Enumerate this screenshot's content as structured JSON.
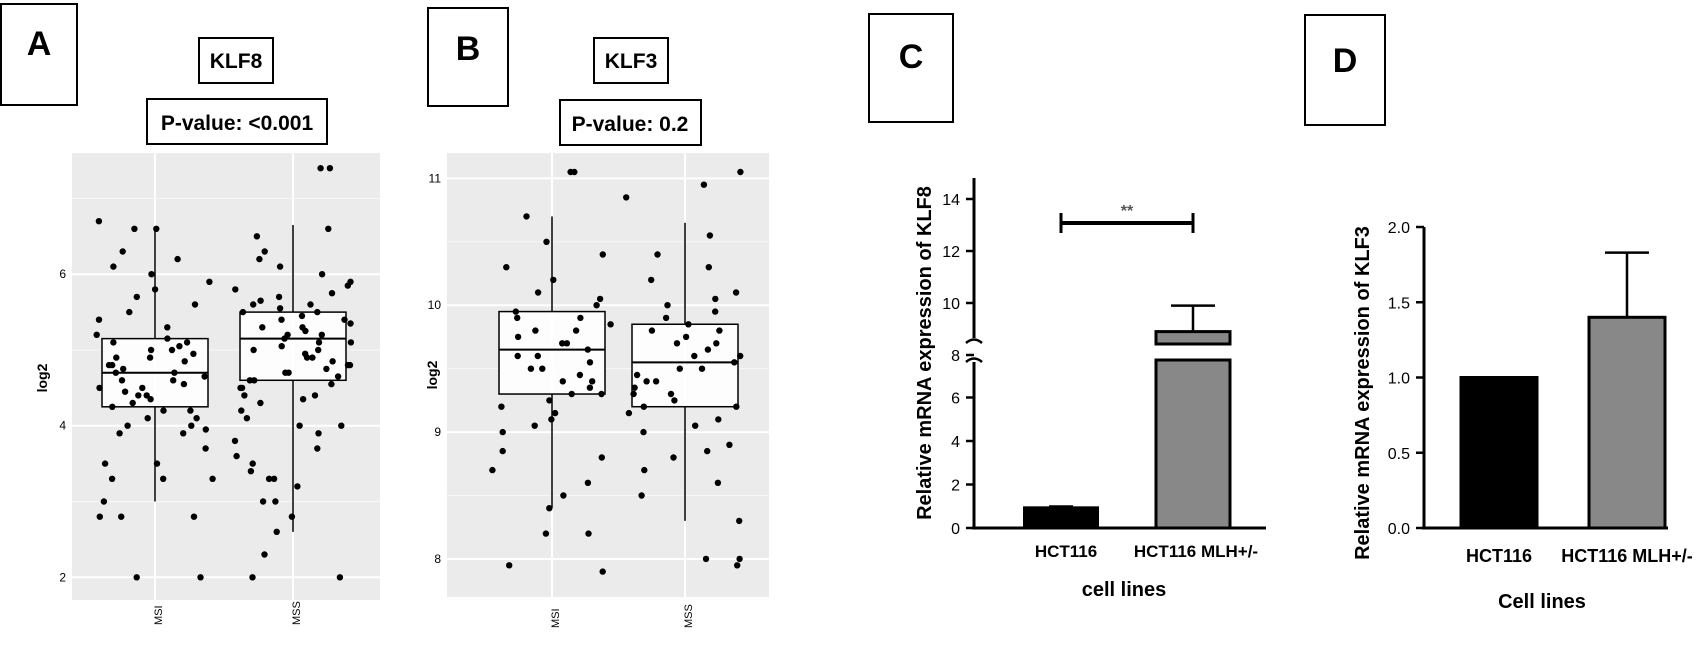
{
  "chart_data": [
    {
      "panel": "A",
      "type": "scatter",
      "subtype": "boxplot-with-jitter",
      "title": "KLF8",
      "subtitle": "P-value: <0.001",
      "xlabel": "",
      "ylabel": "log2",
      "categories": [
        "MSI",
        "MSS"
      ],
      "ylim": [
        1.7,
        7.6
      ],
      "yticks": [
        2,
        4,
        6
      ],
      "grid": true,
      "background": "#ebebeb",
      "boxes": [
        {
          "category": "MSI",
          "whisker_low": 3.0,
          "q1": 4.25,
          "median": 4.7,
          "q3": 5.15,
          "whisker_high": 6.6
        },
        {
          "category": "MSS",
          "whisker_low": 2.6,
          "q1": 4.6,
          "median": 5.15,
          "q3": 5.5,
          "whisker_high": 6.65
        }
      ],
      "points": {
        "MSI": [
          2.0,
          2.0,
          2.8,
          2.8,
          2.8,
          3.0,
          3.3,
          3.3,
          3.3,
          3.5,
          3.5,
          3.7,
          3.9,
          3.9,
          3.95,
          4.0,
          4.0,
          4.1,
          4.1,
          4.2,
          4.2,
          4.25,
          4.3,
          4.35,
          4.4,
          4.4,
          4.45,
          4.5,
          4.5,
          4.55,
          4.6,
          4.6,
          4.65,
          4.7,
          4.7,
          4.75,
          4.8,
          4.8,
          4.85,
          4.9,
          4.9,
          4.95,
          5.0,
          5.0,
          5.05,
          5.1,
          5.1,
          5.15,
          5.2,
          5.3,
          5.4,
          5.5,
          5.6,
          5.7,
          5.8,
          5.9,
          6.0,
          6.1,
          6.2,
          6.3,
          6.6,
          6.6,
          6.7
        ],
        "MSS": [
          2.0,
          2.0,
          2.3,
          2.6,
          2.8,
          3.0,
          3.0,
          3.2,
          3.3,
          3.3,
          3.4,
          3.5,
          3.6,
          3.7,
          3.8,
          3.9,
          4.0,
          4.0,
          4.1,
          4.2,
          4.3,
          4.35,
          4.4,
          4.4,
          4.5,
          4.5,
          4.55,
          4.6,
          4.6,
          4.65,
          4.7,
          4.7,
          4.75,
          4.8,
          4.8,
          4.85,
          4.9,
          4.9,
          4.95,
          5.0,
          5.0,
          5.05,
          5.1,
          5.1,
          5.15,
          5.2,
          5.2,
          5.25,
          5.3,
          5.3,
          5.35,
          5.4,
          5.4,
          5.45,
          5.5,
          5.5,
          5.55,
          5.6,
          5.6,
          5.65,
          5.7,
          5.75,
          5.8,
          5.85,
          5.9,
          6.0,
          6.1,
          6.2,
          6.3,
          6.5,
          6.6,
          7.4,
          7.4
        ]
      }
    },
    {
      "panel": "B",
      "type": "scatter",
      "subtype": "boxplot-with-jitter",
      "title": "KLF3",
      "subtitle": "P-value: 0.2",
      "xlabel": "",
      "ylabel": "log2",
      "categories": [
        "MSI",
        "MSS"
      ],
      "ylim": [
        7.7,
        11.2
      ],
      "yticks": [
        8,
        9,
        10,
        11
      ],
      "grid": true,
      "background": "#ebebeb",
      "boxes": [
        {
          "category": "MSI",
          "whisker_low": 8.4,
          "q1": 9.3,
          "median": 9.65,
          "q3": 9.95,
          "whisker_high": 10.7
        },
        {
          "category": "MSS",
          "whisker_low": 8.3,
          "q1": 9.2,
          "median": 9.55,
          "q3": 9.85,
          "whisker_high": 10.65
        }
      ],
      "points": {
        "MSI": [
          7.9,
          7.95,
          8.2,
          8.2,
          8.4,
          8.5,
          8.6,
          8.7,
          8.8,
          8.85,
          9.0,
          9.05,
          9.1,
          9.15,
          9.2,
          9.25,
          9.3,
          9.3,
          9.35,
          9.4,
          9.4,
          9.45,
          9.5,
          9.5,
          9.55,
          9.6,
          9.6,
          9.65,
          9.7,
          9.7,
          9.75,
          9.8,
          9.8,
          9.85,
          9.9,
          9.9,
          9.95,
          10.0,
          10.05,
          10.1,
          10.2,
          10.3,
          10.4,
          10.5,
          10.7,
          11.05,
          11.05
        ],
        "MSS": [
          7.95,
          8.0,
          8.0,
          8.3,
          8.5,
          8.6,
          8.7,
          8.8,
          8.85,
          8.9,
          9.0,
          9.05,
          9.1,
          9.15,
          9.2,
          9.2,
          9.25,
          9.3,
          9.3,
          9.35,
          9.4,
          9.4,
          9.45,
          9.5,
          9.5,
          9.55,
          9.6,
          9.6,
          9.65,
          9.7,
          9.7,
          9.75,
          9.8,
          9.8,
          9.85,
          9.9,
          9.95,
          10.0,
          10.05,
          10.1,
          10.2,
          10.3,
          10.4,
          10.55,
          10.85,
          10.95,
          11.05
        ]
      }
    },
    {
      "panel": "C",
      "type": "bar",
      "title": "",
      "xlabel": "cell lines",
      "ylabel": "Relative mRNA expression of KLF8",
      "categories": [
        "HCT116",
        "HCT116 MLH+/-"
      ],
      "values": [
        0.95,
        8.9
      ],
      "error": [
        0.05,
        1.0
      ],
      "colors": [
        "#000000",
        "#888888"
      ],
      "axis_break": [
        7.6,
        7.7
      ],
      "yticks_lower": [
        0,
        2,
        4,
        6
      ],
      "yticks_upper": [
        8,
        10,
        12,
        14
      ],
      "ylim": [
        0,
        15
      ],
      "significance": "**"
    },
    {
      "panel": "D",
      "type": "bar",
      "title": "",
      "xlabel": "Cell lines",
      "ylabel": "Relative mRNA expression of KLF3",
      "categories": [
        "HCT116",
        "HCT116 MLH+/-"
      ],
      "values": [
        1.0,
        1.4
      ],
      "error": [
        0.0,
        0.43
      ],
      "colors": [
        "#000000",
        "#888888"
      ],
      "yticks": [
        0.0,
        0.5,
        1.0,
        1.5,
        2.0
      ],
      "ylim": [
        0,
        2.0
      ]
    }
  ],
  "panels": {
    "a": {
      "letter": "A",
      "yticks": [
        "2",
        "4",
        "6"
      ],
      "xticks": [
        "MSI",
        "MSS"
      ]
    },
    "b": {
      "letter": "B",
      "yticks": [
        "8",
        "9",
        "10",
        "11"
      ],
      "xticks": [
        "MSI",
        "MSS"
      ]
    },
    "c": {
      "letter": "C",
      "yticks_lower": [
        "0",
        "2",
        "4",
        "6"
      ],
      "yticks_upper": [
        "8",
        "10",
        "12",
        "14"
      ]
    },
    "d": {
      "letter": "D",
      "yticks": [
        "0.0",
        "0.5",
        "1.0",
        "1.5",
        "2.0"
      ]
    }
  }
}
